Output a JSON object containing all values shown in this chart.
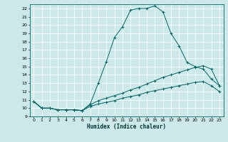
{
  "xlabel": "Humidex (Indice chaleur)",
  "background_color": "#cce8e8",
  "grid_color": "#ffffff",
  "line_color": "#006666",
  "xlim": [
    -0.5,
    23.5
  ],
  "ylim": [
    9,
    22.5
  ],
  "xticks": [
    0,
    1,
    2,
    3,
    4,
    5,
    6,
    7,
    8,
    9,
    10,
    11,
    12,
    13,
    14,
    15,
    16,
    17,
    18,
    19,
    20,
    21,
    22,
    23
  ],
  "yticks": [
    9,
    10,
    11,
    12,
    13,
    14,
    15,
    16,
    17,
    18,
    19,
    20,
    21,
    22
  ],
  "line1_x": [
    0,
    1,
    2,
    3,
    4,
    5,
    6,
    7,
    8,
    9,
    10,
    11,
    12,
    13,
    14,
    15,
    16,
    17,
    18,
    19,
    20,
    21,
    22,
    23
  ],
  "line1_y": [
    10.8,
    10.0,
    10.0,
    9.8,
    9.8,
    9.8,
    9.7,
    10.5,
    13.0,
    15.6,
    18.5,
    19.8,
    21.8,
    22.0,
    22.0,
    22.3,
    21.6,
    19.0,
    17.5,
    15.5,
    15.0,
    14.7,
    13.5,
    12.7
  ],
  "line2_x": [
    0,
    1,
    2,
    3,
    4,
    5,
    6,
    7,
    8,
    9,
    10,
    11,
    12,
    13,
    14,
    15,
    16,
    17,
    18,
    19,
    20,
    21,
    22,
    23
  ],
  "line2_y": [
    10.8,
    10.0,
    10.0,
    9.8,
    9.8,
    9.8,
    9.7,
    10.4,
    10.9,
    11.2,
    11.5,
    11.8,
    12.2,
    12.5,
    12.9,
    13.3,
    13.7,
    14.0,
    14.3,
    14.6,
    14.9,
    15.1,
    14.7,
    12.7
  ],
  "line3_x": [
    0,
    1,
    2,
    3,
    4,
    5,
    6,
    7,
    8,
    9,
    10,
    11,
    12,
    13,
    14,
    15,
    16,
    17,
    18,
    19,
    20,
    21,
    22,
    23
  ],
  "line3_y": [
    10.8,
    10.0,
    10.0,
    9.8,
    9.8,
    9.8,
    9.7,
    10.2,
    10.5,
    10.7,
    10.9,
    11.2,
    11.4,
    11.6,
    11.9,
    12.1,
    12.3,
    12.5,
    12.7,
    12.9,
    13.1,
    13.2,
    12.7,
    12.0
  ]
}
